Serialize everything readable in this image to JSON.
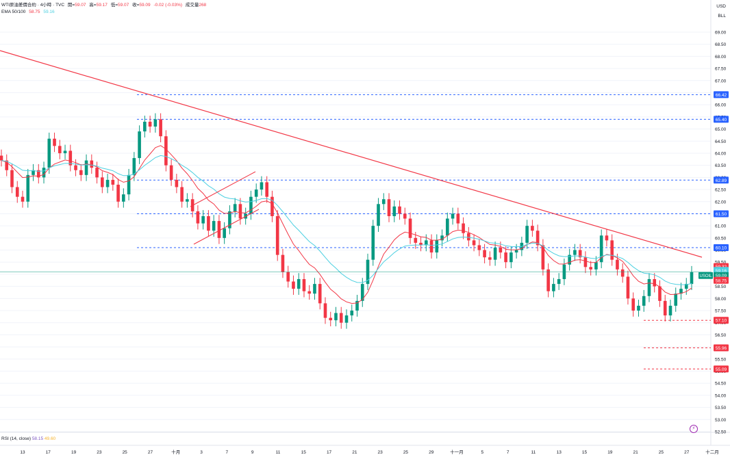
{
  "header": {
    "title": "WTI原油差價合約 · 4小時 · TVC",
    "open_label": "開=",
    "open": "59.07",
    "high_label": "高=",
    "high": "59.17",
    "low_label": "低=",
    "low": "59.07",
    "close_label": "收=",
    "close": "59.09",
    "change": "-0.02 (-0.03%)",
    "volume_label": "成交量",
    "volume": "268",
    "ema_label": "EMA 50/100",
    "ema50": "58.75",
    "ema100": "59.16",
    "currency": "USD",
    "unit": "BLL"
  },
  "rsi": {
    "label": "RSI (14, close)",
    "v1": "58.15",
    "v2": "49.60"
  },
  "colors": {
    "up": "#089981",
    "down": "#f23645",
    "ema50": "#f23645",
    "ema100": "#4dd0e1",
    "trend": "#f23645",
    "level_blue": "#2962ff",
    "level_red": "#f23645",
    "grid": "#f0f3fa"
  },
  "chart_data": {
    "type": "candlestick",
    "symbol": "USOIL",
    "ylim": [
      52.5,
      69.0
    ],
    "y_ticks": [
      "69.00",
      "68.50",
      "68.00",
      "67.50",
      "67.00",
      "66.50",
      "66.00",
      "65.50",
      "65.00",
      "64.50",
      "64.00",
      "63.50",
      "63.00",
      "62.50",
      "62.00",
      "61.50",
      "61.00",
      "60.50",
      "60.00",
      "59.50",
      "59.00",
      "58.50",
      "58.00",
      "57.50",
      "57.00",
      "56.50",
      "56.00",
      "55.50",
      "55.00",
      "54.50",
      "54.00",
      "53.50",
      "53.00",
      "52.50"
    ],
    "x_ticks": [
      "13",
      "17",
      "19",
      "23",
      "25",
      "27",
      "十月",
      "3",
      "7",
      "9",
      "11",
      "15",
      "17",
      "21",
      "23",
      "25",
      "29",
      "十一月",
      "5",
      "7",
      "11",
      "13",
      "15",
      "19",
      "21",
      "25",
      "27",
      "十二月"
    ],
    "candles_close": [
      63.7,
      63.3,
      62.6,
      62.2,
      62.0,
      63.1,
      63.3,
      63.0,
      63.4,
      64.6,
      64.3,
      64.0,
      64.1,
      63.5,
      63.3,
      63.1,
      63.7,
      63.4,
      63.0,
      62.6,
      62.9,
      62.7,
      62.0,
      62.3,
      63.1,
      63.8,
      64.9,
      65.3,
      65.1,
      65.4,
      64.7,
      63.5,
      62.9,
      62.6,
      62.0,
      62.1,
      61.6,
      61.1,
      61.4,
      60.8,
      61.2,
      60.5,
      60.9,
      61.6,
      61.9,
      61.3,
      61.5,
      62.2,
      62.5,
      62.8,
      62.2,
      61.4,
      59.8,
      59.1,
      58.7,
      58.4,
      58.8,
      58.3,
      58.2,
      58.6,
      57.8,
      57.2,
      57.1,
      57.4,
      57.0,
      57.3,
      57.5,
      57.9,
      58.6,
      59.6,
      61.0,
      61.9,
      62.1,
      61.4,
      61.8,
      61.5,
      61.3,
      60.5,
      60.3,
      60.2,
      60.4,
      59.9,
      60.4,
      60.6,
      61.3,
      61.5,
      61.1,
      60.7,
      60.4,
      60.2,
      60.0,
      59.7,
      59.6,
      60.1,
      59.9,
      59.5,
      59.9,
      60.0,
      60.3,
      61.0,
      60.8,
      60.2,
      59.2,
      58.3,
      58.6,
      58.8,
      59.4,
      59.8,
      60.0,
      59.7,
      59.3,
      59.2,
      59.5,
      60.6,
      60.4,
      59.6,
      59.2,
      58.9,
      58.0,
      57.5,
      57.7,
      58.1,
      58.8,
      58.5,
      57.9,
      57.3,
      57.7,
      58.2,
      58.4,
      58.6,
      59.09
    ],
    "level_lines": [
      {
        "value": 66.42,
        "label": "66.42",
        "color": "blue"
      },
      {
        "value": 65.4,
        "label": "65.40",
        "color": "blue"
      },
      {
        "value": 62.89,
        "label": "62.89",
        "color": "blue"
      },
      {
        "value": 61.5,
        "label": "61.50",
        "color": "blue"
      },
      {
        "value": 60.1,
        "label": "60.10",
        "color": "blue"
      },
      {
        "value": 57.1,
        "label": "57.10",
        "color": "red"
      },
      {
        "value": 55.96,
        "label": "55.96",
        "color": "red"
      },
      {
        "value": 55.09,
        "label": "55.09",
        "color": "red"
      }
    ],
    "price_tags": [
      {
        "value": 59.32,
        "label": "59.32",
        "bg": "#f23645"
      },
      {
        "value": 59.16,
        "label": "59.16",
        "bg": "#4dd0e1"
      },
      {
        "value": 58.95,
        "label": "59.09",
        "bg": "#089981",
        "symbol": "USOIL"
      },
      {
        "value": 58.75,
        "label": "58.75",
        "bg": "#f23645"
      }
    ]
  }
}
